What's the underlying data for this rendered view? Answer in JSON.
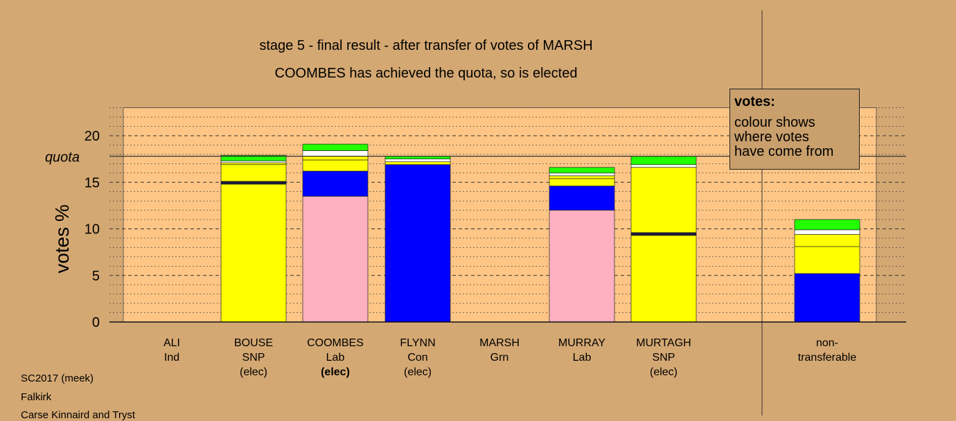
{
  "title": {
    "line1": "stage 5 - final result - after transfer of votes of MARSH",
    "line2": "COOMBES has achieved the quota, so is elected"
  },
  "legend": {
    "title": "votes:",
    "text": [
      "colour shows",
      "where votes",
      "have come from"
    ]
  },
  "footer": [
    "SC2017 (meek)",
    "Falkirk",
    "Carse Kinnaird and Tryst"
  ],
  "colors": {
    "background": "#d4a873",
    "plot_area": "#fdc686",
    "SNP": "#ffff00",
    "Lab": "#ffb0c0",
    "Con": "#0000ff",
    "Grn": "#22ff00",
    "Ind": "#ffffff"
  },
  "chart_data": {
    "type": "bar",
    "stacked": true,
    "ylabel": "votes %",
    "ylim": [
      0,
      23
    ],
    "yticks": [
      0,
      5,
      10,
      15,
      20
    ],
    "quota": 17.8,
    "quota_label": "quota",
    "grid": true,
    "legend_position": "top-right",
    "candidates": [
      {
        "name": "ALI",
        "party": "Ind",
        "status": "",
        "segments": []
      },
      {
        "name": "BOUSE",
        "party": "SNP",
        "status": "(elec)",
        "segments": [
          {
            "source": "SNP",
            "value": 14.8,
            "color": "#ffff00"
          },
          {
            "source": "SNP",
            "value": 0.3,
            "color": "#1a1a3a"
          },
          {
            "source": "SNP",
            "value": 1.8,
            "color": "#ffff00"
          },
          {
            "source": "Ind",
            "value": 0.2,
            "color": "#ffff00"
          },
          {
            "source": "Ind",
            "value": 0.2,
            "color": "#ffffff"
          },
          {
            "source": "Grn",
            "value": 0.6,
            "color": "#22ff00"
          }
        ]
      },
      {
        "name": "COOMBES",
        "party": "Lab",
        "status": "(elec)",
        "status_bold": true,
        "segments": [
          {
            "source": "Lab",
            "value": 13.5,
            "color": "#ffb0c0"
          },
          {
            "source": "Con",
            "value": 2.7,
            "color": "#0000ff"
          },
          {
            "source": "SNP",
            "value": 1.2,
            "color": "#ffff00"
          },
          {
            "source": "SNP",
            "value": 0.4,
            "color": "#ffff00"
          },
          {
            "source": "Ind",
            "value": 0.6,
            "color": "#ffffff"
          },
          {
            "source": "Grn",
            "value": 0.7,
            "color": "#22ff00"
          }
        ]
      },
      {
        "name": "FLYNN",
        "party": "Con",
        "status": "(elec)",
        "segments": [
          {
            "source": "Con",
            "value": 16.9,
            "color": "#0000ff"
          },
          {
            "source": "SNP",
            "value": 0.3,
            "color": "#ffff00"
          },
          {
            "source": "Ind",
            "value": 0.3,
            "color": "#ffffff"
          },
          {
            "source": "Grn",
            "value": 0.3,
            "color": "#22ff00"
          }
        ]
      },
      {
        "name": "MARSH",
        "party": "Grn",
        "status": "",
        "segments": []
      },
      {
        "name": "MURRAY",
        "party": "Lab",
        "status": "",
        "segments": [
          {
            "source": "Lab",
            "value": 12.0,
            "color": "#ffb0c0"
          },
          {
            "source": "Con",
            "value": 2.6,
            "color": "#0000ff"
          },
          {
            "source": "SNP",
            "value": 0.8,
            "color": "#ffff00"
          },
          {
            "source": "SNP",
            "value": 0.3,
            "color": "#ffff00"
          },
          {
            "source": "Ind",
            "value": 0.3,
            "color": "#ffffff"
          },
          {
            "source": "Grn",
            "value": 0.6,
            "color": "#22ff00"
          }
        ]
      },
      {
        "name": "MURTAGH",
        "party": "SNP",
        "status": "(elec)",
        "segments": [
          {
            "source": "SNP",
            "value": 9.3,
            "color": "#ffff00"
          },
          {
            "source": "SNP",
            "value": 0.3,
            "color": "#1a1a3a"
          },
          {
            "source": "SNP",
            "value": 7.0,
            "color": "#ffff00"
          },
          {
            "source": "Ind",
            "value": 0.3,
            "color": "#ffffff"
          },
          {
            "source": "Grn",
            "value": 0.9,
            "color": "#22ff00"
          }
        ]
      },
      {
        "name": "non-",
        "party": "transferable",
        "status": "",
        "segments": [
          {
            "source": "Con",
            "value": 5.2,
            "color": "#0000ff"
          },
          {
            "source": "SNP",
            "value": 2.9,
            "color": "#ffff00"
          },
          {
            "source": "SNP",
            "value": 1.3,
            "color": "#ffff00"
          },
          {
            "source": "Ind",
            "value": 0.5,
            "color": "#ffffff"
          },
          {
            "source": "Grn",
            "value": 1.1,
            "color": "#22ff00"
          }
        ]
      }
    ]
  }
}
